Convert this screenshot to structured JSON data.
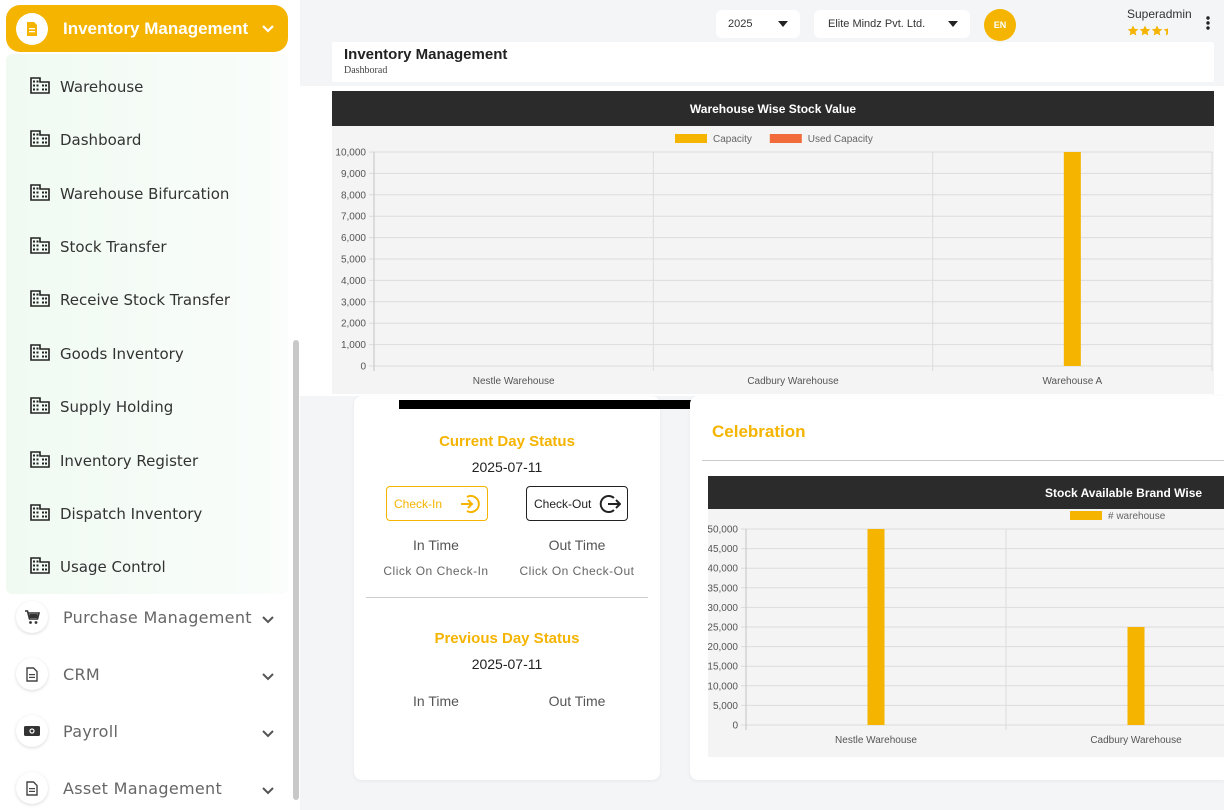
{
  "sidebar": {
    "active_module": {
      "label": "Inventory Management",
      "icon": "document-icon"
    },
    "sub_items": [
      {
        "label": "Warehouse",
        "icon": "building-icon"
      },
      {
        "label": "Dashboard",
        "icon": "building-icon"
      },
      {
        "label": "Warehouse Bifurcation",
        "icon": "building-icon"
      },
      {
        "label": "Stock Transfer",
        "icon": "building-icon"
      },
      {
        "label": "Receive Stock Transfer",
        "icon": "building-icon"
      },
      {
        "label": "Goods Inventory",
        "icon": "building-icon"
      },
      {
        "label": "Supply Holding",
        "icon": "building-icon"
      },
      {
        "label": "Inventory Register",
        "icon": "building-icon"
      },
      {
        "label": "Dispatch Inventory",
        "icon": "building-icon"
      },
      {
        "label": "Usage Control",
        "icon": "building-icon"
      }
    ],
    "modules": [
      {
        "label": "Purchase Management",
        "icon": "cart-icon"
      },
      {
        "label": "CRM",
        "icon": "document-icon"
      },
      {
        "label": "Payroll",
        "icon": "money-icon"
      },
      {
        "label": "Asset Management",
        "icon": "document-icon"
      }
    ]
  },
  "topbar": {
    "year": "2025",
    "company": "Elite Mindz Pvt. Ltd.",
    "language": "EN",
    "user": "Superadmin",
    "rating_stars": 3.5
  },
  "header": {
    "title": "Inventory Management",
    "breadcrumb": "Dashborad"
  },
  "status": {
    "current_title": "Current Day Status",
    "current_date": "2025-07-11",
    "checkin_label": "Check-In",
    "checkout_label": "Check-Out",
    "in_time_label": "In Time",
    "out_time_label": "Out Time",
    "in_hint": "Click On Check-In",
    "out_hint": "Click On Check-Out",
    "previous_title": "Previous Day Status",
    "previous_date": "2025-07-11",
    "prev_in_label": "In Time",
    "prev_out_label": "Out Time"
  },
  "celebration": {
    "title": "Celebration"
  },
  "colors": {
    "accent": "#f4b400",
    "used": "#f26b3a",
    "dark": "#2b2b2b"
  },
  "chart_data": [
    {
      "type": "bar",
      "title": "Warehouse Wise Stock Value",
      "categories": [
        "Nestle Warehouse",
        "Cadbury Warehouse",
        "Warehouse A"
      ],
      "series": [
        {
          "name": "Capacity",
          "color": "#f4b400",
          "values": [
            0,
            0,
            10000
          ]
        },
        {
          "name": "Used Capacity",
          "color": "#f26b3a",
          "values": [
            0,
            0,
            0
          ]
        }
      ],
      "ylim": [
        0,
        10000
      ],
      "yticks": [
        0,
        1000,
        2000,
        3000,
        4000,
        5000,
        6000,
        7000,
        8000,
        9000,
        10000
      ],
      "legend": "top-center",
      "grid": true
    },
    {
      "type": "bar",
      "title": "Stock Available Brand Wise",
      "categories": [
        "Nestle Warehouse",
        "Cadbury Warehouse"
      ],
      "series": [
        {
          "name": "# warehouse",
          "color": "#f4b400",
          "values": [
            50000,
            25000
          ]
        }
      ],
      "ylim": [
        0,
        50000
      ],
      "yticks": [
        0,
        5000,
        10000,
        15000,
        20000,
        25000,
        30000,
        35000,
        40000,
        45000,
        50000
      ],
      "legend": "top-right",
      "grid": true
    }
  ]
}
